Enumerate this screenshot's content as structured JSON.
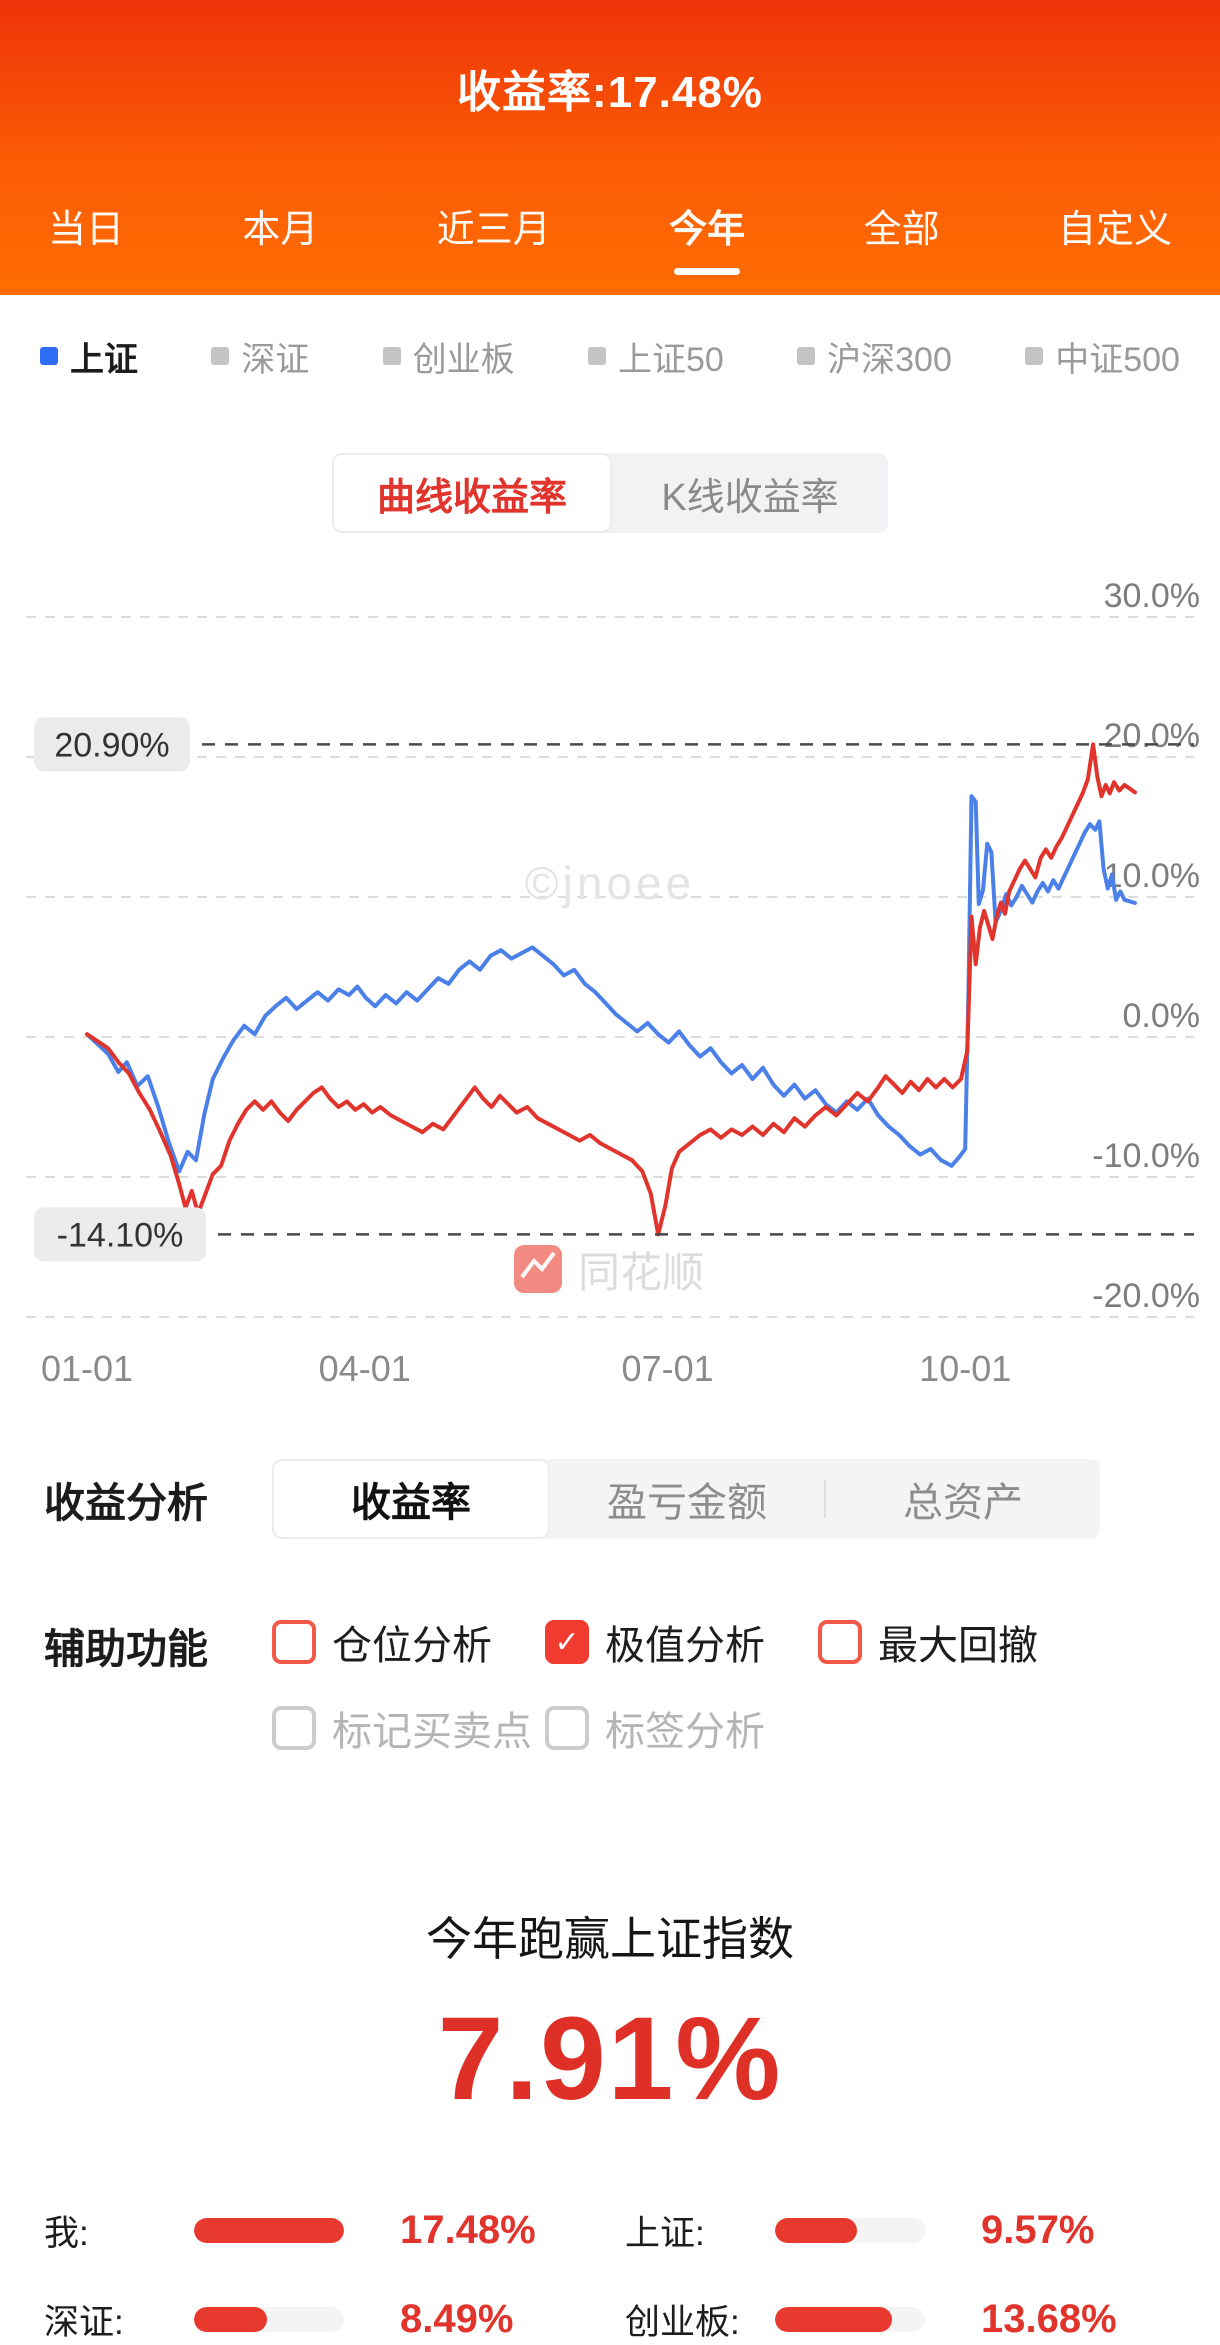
{
  "accent": {
    "red": "#e0342c",
    "blue": "#4a80e8",
    "header_top": "#ee3309",
    "header_bottom": "#ff6d02"
  },
  "header": {
    "title": "收益率:17.48%",
    "tabs": [
      "当日",
      "本月",
      "近三月",
      "今年",
      "全部",
      "自定义"
    ],
    "active_tab": "今年"
  },
  "index_selector": {
    "items": [
      "上证",
      "深证",
      "创业板",
      "上证50",
      "沪深300",
      "中证500"
    ],
    "active": "上证"
  },
  "chart_toggle": {
    "options": [
      "曲线收益率",
      "K线收益率"
    ],
    "selected": "曲线收益率"
  },
  "watermarks": {
    "center": "©jnoee",
    "brand": "同花顺"
  },
  "chart_data": {
    "type": "line",
    "title": "今年收益率曲线",
    "ylim": [
      -20,
      30
    ],
    "grid": true,
    "yticks": [
      {
        "value": 30,
        "label": "30.0%"
      },
      {
        "value": 20,
        "label": "20.0%"
      },
      {
        "value": 10,
        "label": "10.0%"
      },
      {
        "value": 0,
        "label": "0.0%"
      },
      {
        "value": -10,
        "label": "-10.0%"
      },
      {
        "value": -20,
        "label": "-20.0%"
      }
    ],
    "xticks": [
      {
        "f": 0.0,
        "label": "01-01"
      },
      {
        "f": 0.265,
        "label": "04-01"
      },
      {
        "f": 0.554,
        "label": "07-01"
      },
      {
        "f": 0.838,
        "label": "10-01"
      }
    ],
    "annotations": [
      {
        "type": "max",
        "value": 20.9,
        "label": "20.90%"
      },
      {
        "type": "min",
        "value": -14.1,
        "label": "-14.10%"
      }
    ],
    "series": [
      {
        "key": "mine",
        "name": "我",
        "color": "#e0342c",
        "final": 17.48,
        "points": [
          [
            0.0,
            0.2
          ],
          [
            0.01,
            -0.3
          ],
          [
            0.02,
            -0.8
          ],
          [
            0.03,
            -1.8
          ],
          [
            0.04,
            -2.6
          ],
          [
            0.05,
            -4.0
          ],
          [
            0.06,
            -5.2
          ],
          [
            0.07,
            -6.8
          ],
          [
            0.08,
            -8.5
          ],
          [
            0.088,
            -10.5
          ],
          [
            0.094,
            -12.2
          ],
          [
            0.1,
            -11.0
          ],
          [
            0.106,
            -12.6
          ],
          [
            0.112,
            -11.4
          ],
          [
            0.12,
            -9.8
          ],
          [
            0.128,
            -9.2
          ],
          [
            0.136,
            -7.4
          ],
          [
            0.144,
            -6.2
          ],
          [
            0.152,
            -5.2
          ],
          [
            0.16,
            -4.6
          ],
          [
            0.168,
            -5.2
          ],
          [
            0.176,
            -4.6
          ],
          [
            0.184,
            -5.4
          ],
          [
            0.192,
            -6.0
          ],
          [
            0.2,
            -5.2
          ],
          [
            0.208,
            -4.6
          ],
          [
            0.216,
            -4.0
          ],
          [
            0.224,
            -3.6
          ],
          [
            0.232,
            -4.4
          ],
          [
            0.24,
            -5.0
          ],
          [
            0.248,
            -4.6
          ],
          [
            0.256,
            -5.2
          ],
          [
            0.264,
            -4.8
          ],
          [
            0.272,
            -5.4
          ],
          [
            0.28,
            -5.0
          ],
          [
            0.29,
            -5.6
          ],
          [
            0.3,
            -6.0
          ],
          [
            0.31,
            -6.4
          ],
          [
            0.32,
            -6.8
          ],
          [
            0.33,
            -6.2
          ],
          [
            0.34,
            -6.6
          ],
          [
            0.35,
            -5.6
          ],
          [
            0.36,
            -4.6
          ],
          [
            0.37,
            -3.6
          ],
          [
            0.378,
            -4.4
          ],
          [
            0.386,
            -5.0
          ],
          [
            0.394,
            -4.2
          ],
          [
            0.402,
            -4.8
          ],
          [
            0.41,
            -5.4
          ],
          [
            0.42,
            -5.0
          ],
          [
            0.43,
            -5.8
          ],
          [
            0.44,
            -6.2
          ],
          [
            0.45,
            -6.6
          ],
          [
            0.46,
            -7.0
          ],
          [
            0.47,
            -7.4
          ],
          [
            0.48,
            -7.0
          ],
          [
            0.49,
            -7.6
          ],
          [
            0.5,
            -8.0
          ],
          [
            0.51,
            -8.4
          ],
          [
            0.52,
            -8.8
          ],
          [
            0.53,
            -9.6
          ],
          [
            0.538,
            -11.2
          ],
          [
            0.545,
            -14.1
          ],
          [
            0.552,
            -12.0
          ],
          [
            0.558,
            -9.4
          ],
          [
            0.565,
            -8.2
          ],
          [
            0.575,
            -7.6
          ],
          [
            0.585,
            -7.0
          ],
          [
            0.595,
            -6.6
          ],
          [
            0.605,
            -7.2
          ],
          [
            0.615,
            -6.6
          ],
          [
            0.625,
            -7.0
          ],
          [
            0.635,
            -6.4
          ],
          [
            0.645,
            -7.0
          ],
          [
            0.655,
            -6.2
          ],
          [
            0.665,
            -6.8
          ],
          [
            0.675,
            -5.8
          ],
          [
            0.685,
            -6.4
          ],
          [
            0.695,
            -5.6
          ],
          [
            0.705,
            -5.0
          ],
          [
            0.715,
            -5.6
          ],
          [
            0.725,
            -4.8
          ],
          [
            0.735,
            -4.0
          ],
          [
            0.745,
            -4.6
          ],
          [
            0.755,
            -3.6
          ],
          [
            0.762,
            -2.8
          ],
          [
            0.77,
            -3.4
          ],
          [
            0.778,
            -4.0
          ],
          [
            0.786,
            -3.2
          ],
          [
            0.794,
            -3.8
          ],
          [
            0.802,
            -3.0
          ],
          [
            0.81,
            -3.6
          ],
          [
            0.818,
            -3.0
          ],
          [
            0.826,
            -3.6
          ],
          [
            0.834,
            -3.0
          ],
          [
            0.84,
            -1.0
          ],
          [
            0.844,
            8.6
          ],
          [
            0.848,
            5.2
          ],
          [
            0.852,
            7.8
          ],
          [
            0.856,
            9.0
          ],
          [
            0.86,
            8.0
          ],
          [
            0.864,
            7.0
          ],
          [
            0.868,
            8.6
          ],
          [
            0.872,
            9.6
          ],
          [
            0.876,
            8.8
          ],
          [
            0.88,
            10.4
          ],
          [
            0.885,
            11.2
          ],
          [
            0.89,
            12.0
          ],
          [
            0.895,
            12.6
          ],
          [
            0.9,
            12.0
          ],
          [
            0.905,
            11.4
          ],
          [
            0.91,
            12.8
          ],
          [
            0.915,
            13.4
          ],
          [
            0.92,
            12.8
          ],
          [
            0.925,
            13.6
          ],
          [
            0.93,
            14.2
          ],
          [
            0.935,
            15.0
          ],
          [
            0.94,
            15.8
          ],
          [
            0.945,
            16.6
          ],
          [
            0.95,
            17.4
          ],
          [
            0.955,
            18.4
          ],
          [
            0.96,
            20.9
          ],
          [
            0.964,
            18.6
          ],
          [
            0.968,
            17.2
          ],
          [
            0.972,
            18.0
          ],
          [
            0.976,
            17.4
          ],
          [
            0.98,
            18.2
          ],
          [
            0.985,
            17.6
          ],
          [
            0.99,
            18.0
          ],
          [
            1.0,
            17.48
          ]
        ]
      },
      {
        "key": "index",
        "name": "上证",
        "color": "#4a80e8",
        "final": 9.57,
        "points": [
          [
            0.0,
            0.2
          ],
          [
            0.01,
            -0.5
          ],
          [
            0.02,
            -1.2
          ],
          [
            0.03,
            -2.5
          ],
          [
            0.038,
            -1.8
          ],
          [
            0.048,
            -3.5
          ],
          [
            0.058,
            -2.8
          ],
          [
            0.068,
            -5.0
          ],
          [
            0.078,
            -7.5
          ],
          [
            0.088,
            -9.6
          ],
          [
            0.096,
            -8.2
          ],
          [
            0.104,
            -8.8
          ],
          [
            0.112,
            -5.5
          ],
          [
            0.12,
            -3.0
          ],
          [
            0.13,
            -1.5
          ],
          [
            0.14,
            -0.2
          ],
          [
            0.15,
            0.8
          ],
          [
            0.16,
            0.2
          ],
          [
            0.17,
            1.5
          ],
          [
            0.18,
            2.2
          ],
          [
            0.19,
            2.8
          ],
          [
            0.2,
            2.0
          ],
          [
            0.21,
            2.6
          ],
          [
            0.22,
            3.2
          ],
          [
            0.23,
            2.6
          ],
          [
            0.24,
            3.4
          ],
          [
            0.25,
            3.0
          ],
          [
            0.258,
            3.6
          ],
          [
            0.266,
            2.8
          ],
          [
            0.275,
            2.2
          ],
          [
            0.285,
            3.0
          ],
          [
            0.295,
            2.4
          ],
          [
            0.305,
            3.2
          ],
          [
            0.315,
            2.6
          ],
          [
            0.325,
            3.4
          ],
          [
            0.335,
            4.2
          ],
          [
            0.345,
            3.8
          ],
          [
            0.355,
            4.8
          ],
          [
            0.365,
            5.4
          ],
          [
            0.375,
            4.8
          ],
          [
            0.385,
            5.8
          ],
          [
            0.395,
            6.2
          ],
          [
            0.405,
            5.6
          ],
          [
            0.415,
            6.0
          ],
          [
            0.425,
            6.4
          ],
          [
            0.435,
            5.8
          ],
          [
            0.445,
            5.2
          ],
          [
            0.455,
            4.4
          ],
          [
            0.465,
            4.8
          ],
          [
            0.475,
            3.8
          ],
          [
            0.485,
            3.2
          ],
          [
            0.495,
            2.4
          ],
          [
            0.505,
            1.6
          ],
          [
            0.515,
            1.0
          ],
          [
            0.525,
            0.4
          ],
          [
            0.535,
            1.0
          ],
          [
            0.545,
            0.2
          ],
          [
            0.555,
            -0.4
          ],
          [
            0.565,
            0.4
          ],
          [
            0.575,
            -0.6
          ],
          [
            0.585,
            -1.4
          ],
          [
            0.595,
            -0.8
          ],
          [
            0.605,
            -1.8
          ],
          [
            0.615,
            -2.6
          ],
          [
            0.625,
            -2.0
          ],
          [
            0.635,
            -3.0
          ],
          [
            0.645,
            -2.2
          ],
          [
            0.655,
            -3.4
          ],
          [
            0.665,
            -4.2
          ],
          [
            0.675,
            -3.4
          ],
          [
            0.685,
            -4.4
          ],
          [
            0.695,
            -3.8
          ],
          [
            0.705,
            -4.8
          ],
          [
            0.715,
            -5.4
          ],
          [
            0.725,
            -4.6
          ],
          [
            0.735,
            -5.2
          ],
          [
            0.745,
            -4.4
          ],
          [
            0.755,
            -5.6
          ],
          [
            0.765,
            -6.4
          ],
          [
            0.775,
            -7.0
          ],
          [
            0.785,
            -7.8
          ],
          [
            0.795,
            -8.4
          ],
          [
            0.805,
            -8.0
          ],
          [
            0.815,
            -8.8
          ],
          [
            0.825,
            -9.2
          ],
          [
            0.832,
            -8.6
          ],
          [
            0.838,
            -8.0
          ],
          [
            0.841,
            3.0
          ],
          [
            0.844,
            17.2
          ],
          [
            0.848,
            16.8
          ],
          [
            0.851,
            9.5
          ],
          [
            0.855,
            10.5
          ],
          [
            0.859,
            13.8
          ],
          [
            0.863,
            13.2
          ],
          [
            0.867,
            8.2
          ],
          [
            0.872,
            9.0
          ],
          [
            0.877,
            10.2
          ],
          [
            0.882,
            9.4
          ],
          [
            0.887,
            10.0
          ],
          [
            0.892,
            10.8
          ],
          [
            0.897,
            10.2
          ],
          [
            0.902,
            9.6
          ],
          [
            0.907,
            10.4
          ],
          [
            0.912,
            11.0
          ],
          [
            0.917,
            10.4
          ],
          [
            0.922,
            11.2
          ],
          [
            0.927,
            10.6
          ],
          [
            0.932,
            11.4
          ],
          [
            0.937,
            12.2
          ],
          [
            0.942,
            13.0
          ],
          [
            0.947,
            13.8
          ],
          [
            0.952,
            14.6
          ],
          [
            0.957,
            15.2
          ],
          [
            0.962,
            14.8
          ],
          [
            0.966,
            15.4
          ],
          [
            0.97,
            12.0
          ],
          [
            0.974,
            10.6
          ],
          [
            0.978,
            11.6
          ],
          [
            0.982,
            9.8
          ],
          [
            0.986,
            10.4
          ],
          [
            0.99,
            9.8
          ],
          [
            1.0,
            9.57
          ]
        ]
      }
    ]
  },
  "analysis": {
    "label": "收益分析",
    "tabs": [
      "收益率",
      "盈亏金额",
      "总资产"
    ],
    "selected": "收益率"
  },
  "aux": {
    "label": "辅助功能",
    "options": [
      {
        "label": "仓位分析",
        "checked": false,
        "style": "red"
      },
      {
        "label": "极值分析",
        "checked": true,
        "style": "red"
      },
      {
        "label": "最大回撤",
        "checked": false,
        "style": "red"
      },
      {
        "label": "标记买卖点",
        "checked": false,
        "style": "gray"
      },
      {
        "label": "标签分析",
        "checked": false,
        "style": "gray"
      }
    ]
  },
  "summary": {
    "line": "今年跑赢上证指数",
    "big_value": "7.91%"
  },
  "comparison": {
    "max": 17.48,
    "items": [
      {
        "label": "我:",
        "value": "17.48%",
        "pct": 17.48
      },
      {
        "label": "上证:",
        "value": "9.57%",
        "pct": 9.57
      },
      {
        "label": "深证:",
        "value": "8.49%",
        "pct": 8.49
      },
      {
        "label": "创业板:",
        "value": "13.68%",
        "pct": 13.68
      }
    ]
  }
}
